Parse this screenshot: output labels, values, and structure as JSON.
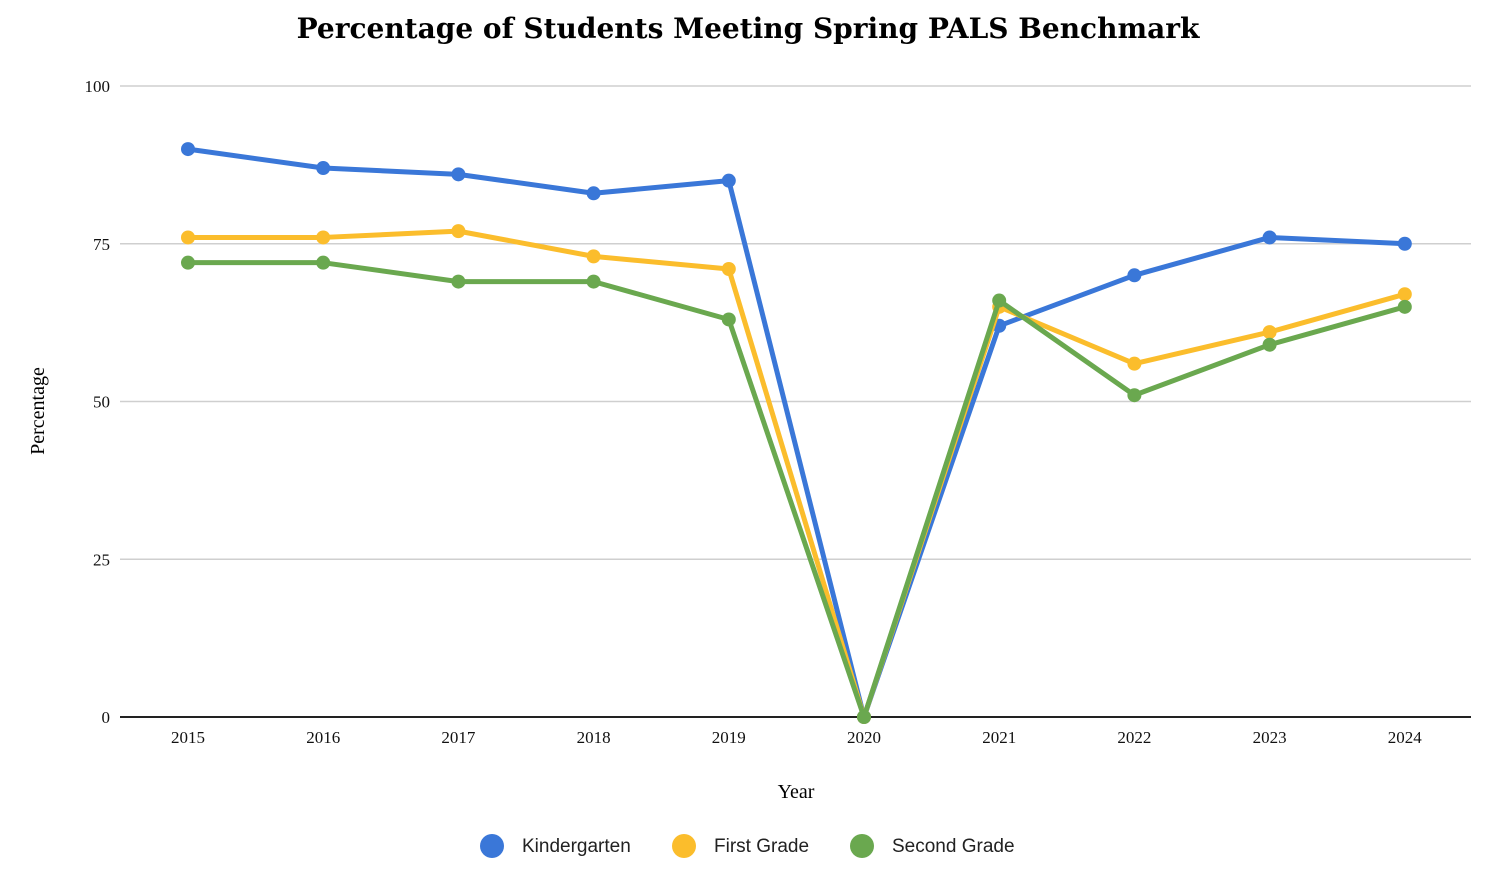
{
  "chart_data": {
    "type": "line",
    "title": "Percentage of Students Meeting Spring PALS Benchmark",
    "xlabel": "Year",
    "ylabel": "Percentage",
    "categories": [
      "2015",
      "2016",
      "2017",
      "2018",
      "2019",
      "2020",
      "2021",
      "2022",
      "2023",
      "2024"
    ],
    "ylim": [
      0,
      100
    ],
    "yticks": [
      "0",
      "25",
      "50",
      "75",
      "100"
    ],
    "grid": true,
    "legend_position": "bottom",
    "series": [
      {
        "name": "Kindergarten",
        "color": "#3a77d8",
        "values": [
          90,
          87,
          86,
          83,
          85,
          0,
          62,
          70,
          76,
          75
        ]
      },
      {
        "name": "First Grade",
        "color": "#fbbd2c",
        "values": [
          76,
          76,
          77,
          73,
          71,
          0,
          65,
          56,
          61,
          67
        ]
      },
      {
        "name": "Second Grade",
        "color": "#6aa84f",
        "values": [
          72,
          72,
          69,
          69,
          63,
          0,
          66,
          51,
          59,
          65
        ]
      }
    ]
  }
}
